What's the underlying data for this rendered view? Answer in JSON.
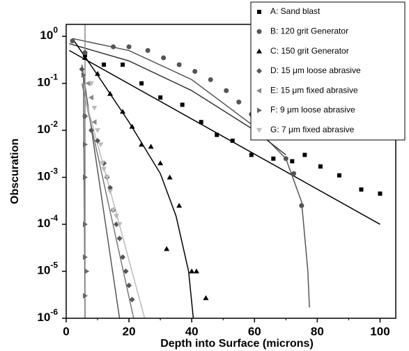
{
  "chart_data": {
    "type": "scatter",
    "xlabel": "Depth into Surface (microns)",
    "ylabel": "Obscuration",
    "xlim": [
      0,
      105
    ],
    "ylim": [
      1e-06,
      1.8
    ],
    "ylog": true,
    "xticks": [
      0,
      20,
      40,
      60,
      80,
      100
    ],
    "yticks": [
      {
        "value": 1,
        "label": "10",
        "exponent": "0"
      },
      {
        "value": 0.1,
        "label": "10",
        "exponent": "-1"
      },
      {
        "value": 0.01,
        "label": "10",
        "exponent": "-2"
      },
      {
        "value": 0.001,
        "label": "10",
        "exponent": "-3"
      },
      {
        "value": 0.0001,
        "label": "10",
        "exponent": "-4"
      },
      {
        "value": 1e-05,
        "label": "10",
        "exponent": "-5"
      },
      {
        "value": 1e-06,
        "label": "10",
        "exponent": "-6"
      }
    ],
    "legend": "upper right",
    "series": [
      {
        "name": "A: Sand blast",
        "color": "#000000",
        "marker": "square",
        "x": [
          6,
          12,
          18,
          24,
          30,
          37,
          43,
          48,
          53,
          59,
          66,
          72,
          76,
          81,
          87,
          94,
          100
        ],
        "values": [
          0.4,
          0.25,
          0.25,
          0.1,
          0.05,
          0.035,
          0.015,
          0.008,
          0.006,
          0.003,
          0.0025,
          0.0022,
          0.003,
          0.0017,
          0.0011,
          0.00055,
          0.00045
        ]
      },
      {
        "name": "B: 120 grit Generator",
        "color": "#555555",
        "marker": "circle",
        "x": [
          2,
          6,
          15,
          20,
          26,
          31,
          36,
          41,
          46,
          51,
          55,
          59,
          63,
          66,
          70,
          72.5,
          75
        ],
        "values": [
          0.8,
          0.45,
          0.6,
          0.6,
          0.5,
          0.35,
          0.25,
          0.18,
          0.12,
          0.07,
          0.04,
          0.022,
          0.012,
          0.007,
          0.0025,
          0.0012,
          0.00025
        ]
      },
      {
        "name": "C: 150 grit Generator",
        "color": "#000000",
        "marker": "triangle-up",
        "x": [
          6,
          10,
          14,
          18,
          21,
          24,
          27,
          30,
          32,
          33,
          36,
          40,
          41.5,
          44.5
        ],
        "values": [
          0.35,
          0.16,
          0.06,
          0.025,
          0.012,
          0.005,
          0.0045,
          0.002,
          3e-05,
          0.001,
          0.00025,
          1e-05,
          1e-05,
          2.7e-06
        ]
      },
      {
        "name": "D: 15 μm loose abrasive",
        "color": "#555555",
        "marker": "diamond",
        "x": [
          5,
          6,
          8,
          10,
          12,
          13,
          14,
          15,
          16,
          17,
          18,
          19,
          20,
          21
        ],
        "values": [
          0.2,
          0.02,
          0.01,
          0.006,
          0.002,
          0.001,
          0.0006,
          0.0002,
          0.0001,
          5e-05,
          2e-05,
          1e-05,
          5e-06,
          2.5e-06
        ]
      },
      {
        "name": "E: 15 μm fixed abrasive",
        "color": "#888888",
        "marker": "triangle-left",
        "x": [
          7,
          8,
          9
        ],
        "values": [
          0.1,
          0.05,
          0.015
        ]
      },
      {
        "name": "F: 9 μm loose abrasive",
        "color": "#666666",
        "marker": "triangle-right",
        "x": [
          5.5,
          6,
          6,
          6,
          6,
          6,
          6.5,
          6
        ],
        "values": [
          0.15,
          0.02,
          0.005,
          0.001,
          0.0001,
          2e-05,
          1e-05,
          3e-06
        ]
      },
      {
        "name": "G: 7 μm fixed abrasive",
        "color": "#bbbbbb",
        "marker": "triangle-down",
        "x": [
          8,
          9,
          10,
          11,
          11.5,
          12,
          13,
          14,
          15,
          16,
          17
        ],
        "values": [
          0.1,
          0.03,
          0.01,
          0.005,
          0.002,
          0.0015,
          0.001,
          0.0005,
          0.0002,
          0.00015,
          0.0001
        ]
      }
    ],
    "fits": [
      {
        "color": "#000000",
        "x": [
          1,
          100
        ],
        "values": [
          0.5,
          0.0001
        ]
      },
      {
        "color": "#555555",
        "x": [
          2,
          20,
          40,
          60,
          70,
          75,
          77,
          77.5
        ],
        "values": [
          0.9,
          0.5,
          0.12,
          0.012,
          0.0025,
          0.0003,
          1e-05,
          1.7e-06
        ]
      },
      {
        "color": "#333333",
        "x": [
          1,
          20,
          40,
          60,
          70
        ],
        "values": [
          0.7,
          0.3,
          0.07,
          0.01,
          0.003
        ]
      },
      {
        "color": "#000000",
        "x": [
          2,
          10,
          20,
          30,
          35,
          39,
          40.5
        ],
        "values": [
          0.9,
          0.15,
          0.015,
          0.0012,
          0.00015,
          1e-05,
          1e-06
        ]
      },
      {
        "color": "#555555",
        "x": [
          5,
          17
        ],
        "values": [
          0.25,
          1e-06
        ]
      },
      {
        "color": "#666666",
        "x": [
          5.5,
          6
        ],
        "values": [
          0.15,
          1e-06
        ]
      },
      {
        "color": "#777777",
        "x": [
          5,
          21.5
        ],
        "values": [
          0.1,
          1e-06
        ]
      },
      {
        "color": "#bbbbbb",
        "x": [
          6,
          25
        ],
        "values": [
          0.05,
          1e-06
        ]
      },
      {
        "color": "#888888",
        "x": [
          6,
          6
        ],
        "values": [
          1.8,
          1e-06
        ]
      }
    ]
  }
}
